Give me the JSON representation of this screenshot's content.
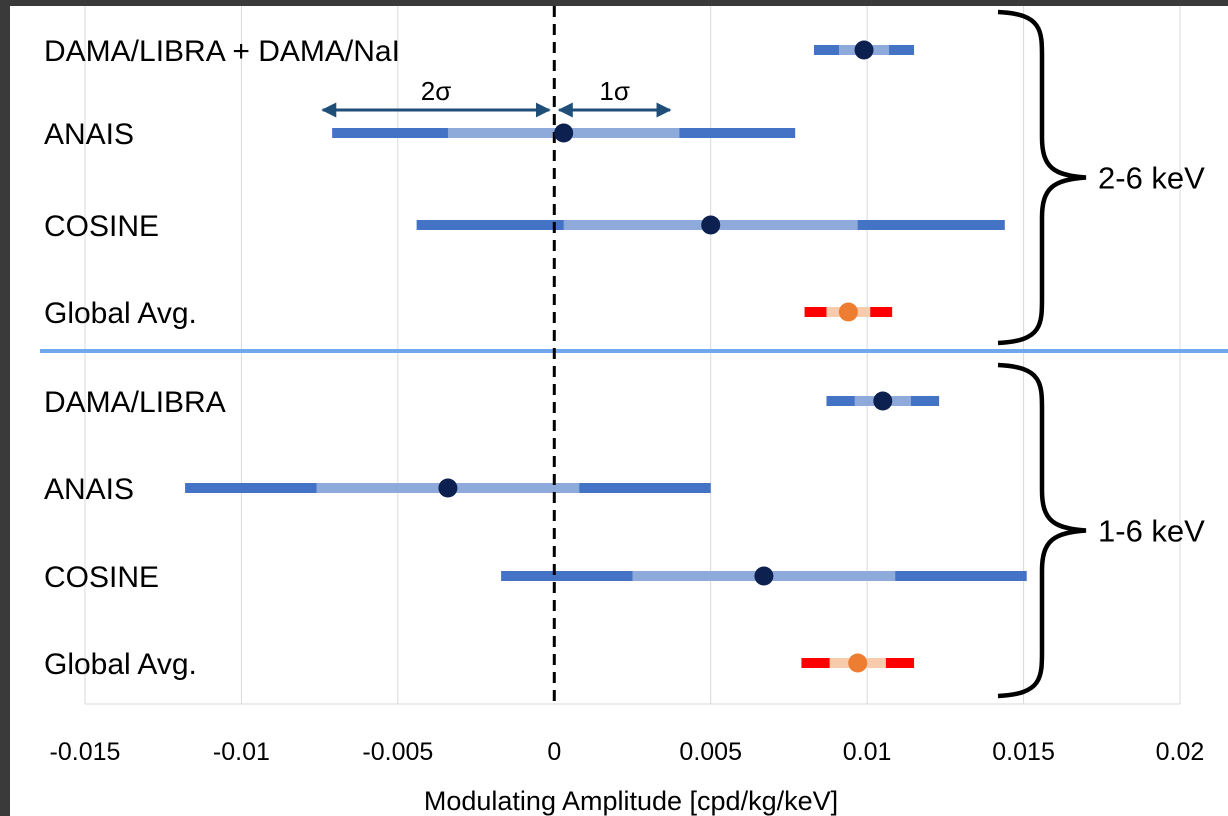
{
  "chart_data": {
    "type": "errorbar",
    "xlabel": "Modulating Amplitude [cpd/kg/keV]",
    "xlim": [
      -0.015,
      0.02
    ],
    "xticks": [
      -0.015,
      -0.01,
      -0.005,
      0,
      0.005,
      0.01,
      0.015,
      0.02
    ],
    "xtick_labels": [
      "-0.015",
      "-0.01",
      "-0.005",
      "0",
      "0.005",
      "0.01",
      "0.015",
      "0.02"
    ],
    "grid": "vertical",
    "zero_line": "dashed",
    "colors": {
      "two_sigma": "#4472c4",
      "one_sigma": "#8eaadb",
      "point": "#0d2150",
      "avg_two_sigma": "#ff0000",
      "avg_one_sigma": "#f8cbad",
      "avg_point": "#ed7d31",
      "divider": "#6fa8ec",
      "annotation": "#1f4e79"
    },
    "groups": [
      {
        "label": "2-6 keV",
        "rows": [
          {
            "name": "DAMA/LIBRA + DAMA/NaI",
            "value": 0.0099,
            "sigma": 0.0008,
            "style": "experiment"
          },
          {
            "name": "ANAIS",
            "value": 0.0003,
            "sigma": 0.0037,
            "style": "experiment"
          },
          {
            "name": "COSINE",
            "value": 0.005,
            "sigma": 0.0047,
            "style": "experiment"
          },
          {
            "name": "Global Avg.",
            "value": 0.0094,
            "sigma": 0.0007,
            "style": "average"
          }
        ]
      },
      {
        "label": "1-6 keV",
        "rows": [
          {
            "name": "DAMA/LIBRA",
            "value": 0.0105,
            "sigma": 0.0009,
            "style": "experiment"
          },
          {
            "name": "ANAIS",
            "value": -0.0034,
            "sigma": 0.0042,
            "style": "experiment"
          },
          {
            "name": "COSINE",
            "value": 0.0067,
            "sigma": 0.0042,
            "style": "experiment"
          },
          {
            "name": "Global Avg.",
            "value": 0.0097,
            "sigma": 0.0009,
            "style": "average"
          }
        ]
      }
    ],
    "annotations": [
      {
        "text": "2σ",
        "from": -0.0074,
        "to": 0
      },
      {
        "text": "1σ",
        "from": 0,
        "to": 0.0037
      }
    ]
  }
}
